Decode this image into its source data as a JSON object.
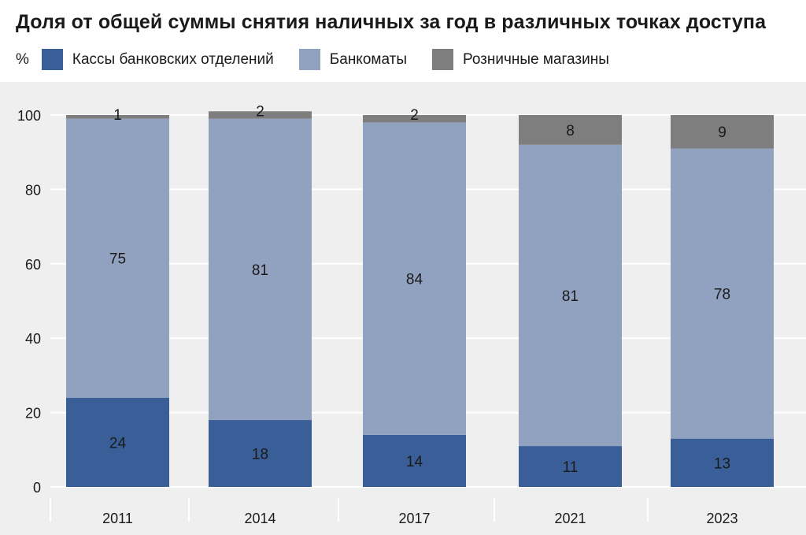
{
  "title": "Доля от общей суммы снятия наличных за год в различных точках доступа",
  "unit": "%",
  "colors": {
    "background": "#efefef",
    "gridline": "#ffffff"
  },
  "chart_data": {
    "type": "bar",
    "stacked": true,
    "title": "Доля от общей суммы снятия наличных за год в различных точках доступа",
    "ylabel": "%",
    "ylim": [
      0,
      100
    ],
    "yticks": [
      0,
      20,
      40,
      60,
      80,
      100
    ],
    "categories": [
      "2011",
      "2014",
      "2017",
      "2021",
      "2023"
    ],
    "series": [
      {
        "name": "Кассы банковских отделений",
        "color": "#3a5f98",
        "values": [
          24,
          18,
          14,
          11,
          13
        ]
      },
      {
        "name": "Банкоматы",
        "color": "#91a2c1",
        "values": [
          75,
          81,
          84,
          81,
          78
        ]
      },
      {
        "name": "Розничные магазины",
        "color": "#7f7e7f",
        "values": [
          1,
          2,
          2,
          8,
          9
        ]
      }
    ],
    "legend_position": "top-left",
    "grid": true
  }
}
